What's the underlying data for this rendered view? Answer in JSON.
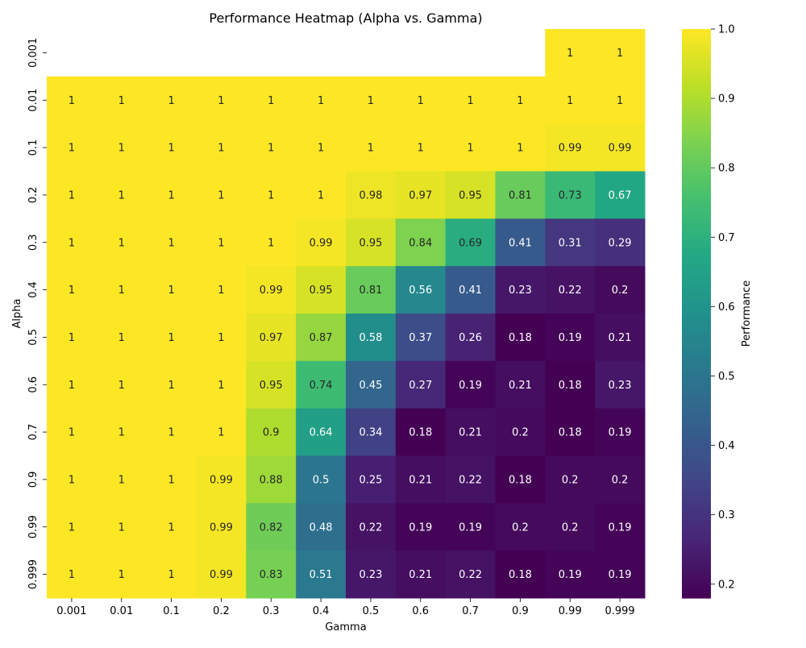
{
  "chart_data": {
    "type": "heatmap",
    "title": "Performance Heatmap (Alpha vs. Gamma)",
    "xlabel": "Gamma",
    "ylabel": "Alpha",
    "x_categories": [
      "0.001",
      "0.01",
      "0.1",
      "0.2",
      "0.3",
      "0.4",
      "0.5",
      "0.6",
      "0.7",
      "0.9",
      "0.99",
      "0.999"
    ],
    "y_categories": [
      "0.001",
      "0.01",
      "0.1",
      "0.2",
      "0.3",
      "0.4",
      "0.5",
      "0.6",
      "0.7",
      "0.9",
      "0.99",
      "0.999"
    ],
    "values": [
      [
        null,
        null,
        null,
        null,
        null,
        null,
        null,
        null,
        null,
        null,
        1,
        1
      ],
      [
        1,
        1,
        1,
        1,
        1,
        1,
        1,
        1,
        1,
        1,
        1,
        1
      ],
      [
        1,
        1,
        1,
        1,
        1,
        1,
        1,
        1,
        1,
        1,
        0.99,
        0.99
      ],
      [
        1,
        1,
        1,
        1,
        1,
        1,
        0.98,
        0.97,
        0.95,
        0.81,
        0.73,
        0.67
      ],
      [
        1,
        1,
        1,
        1,
        1,
        0.99,
        0.95,
        0.84,
        0.69,
        0.41,
        0.31,
        0.29
      ],
      [
        1,
        1,
        1,
        1,
        0.99,
        0.95,
        0.81,
        0.56,
        0.41,
        0.23,
        0.22,
        0.2
      ],
      [
        1,
        1,
        1,
        1,
        0.97,
        0.87,
        0.58,
        0.37,
        0.26,
        0.18,
        0.19,
        0.21
      ],
      [
        1,
        1,
        1,
        1,
        0.95,
        0.74,
        0.45,
        0.27,
        0.19,
        0.21,
        0.18,
        0.23
      ],
      [
        1,
        1,
        1,
        1,
        0.9,
        0.64,
        0.34,
        0.18,
        0.21,
        0.2,
        0.18,
        0.19
      ],
      [
        1,
        1,
        1,
        0.99,
        0.88,
        0.5,
        0.25,
        0.21,
        0.22,
        0.18,
        0.2,
        0.2
      ],
      [
        1,
        1,
        1,
        0.99,
        0.82,
        0.48,
        0.22,
        0.19,
        0.19,
        0.2,
        0.2,
        0.19
      ],
      [
        1,
        1,
        1,
        0.99,
        0.83,
        0.51,
        0.23,
        0.21,
        0.22,
        0.18,
        0.19,
        0.19
      ]
    ],
    "colorbar": {
      "label": "Performance",
      "range": [
        0.18,
        1.0
      ],
      "ticks": [
        "0.2",
        "0.3",
        "0.4",
        "0.5",
        "0.6",
        "0.7",
        "0.8",
        "0.9",
        "1.0"
      ],
      "colormap": "viridis"
    }
  }
}
